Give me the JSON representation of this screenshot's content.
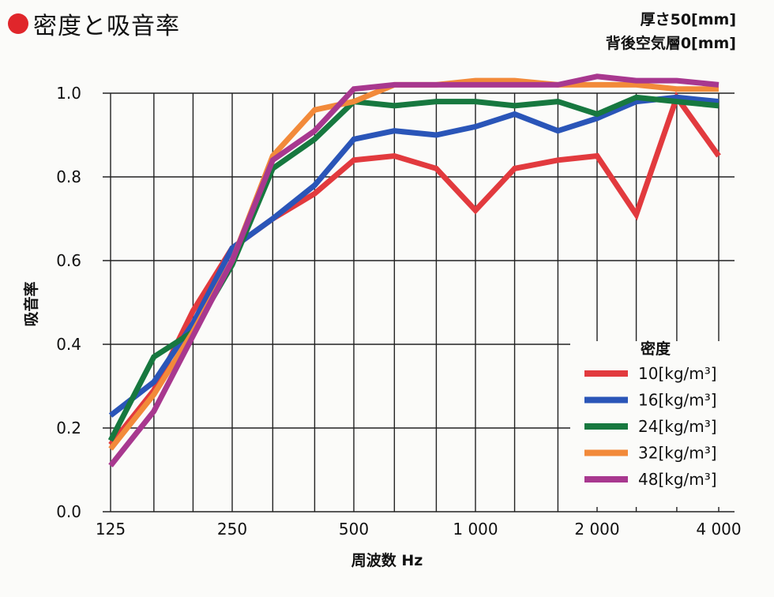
{
  "header": {
    "title": "密度と吸音率",
    "spec_thickness": "厚さ50[mm]",
    "spec_air_layer": "背後空気層0[mm]"
  },
  "chart_data": {
    "type": "line",
    "title": "密度と吸音率",
    "xlabel": "周波数 Hz",
    "ylabel": "吸音率",
    "x_scale": "log",
    "x": [
      125,
      160,
      200,
      250,
      315,
      400,
      500,
      630,
      800,
      1000,
      1250,
      1600,
      2000,
      2500,
      3150,
      4000
    ],
    "x_ticks": [
      {
        "value": 125,
        "label": "125"
      },
      {
        "value": 250,
        "label": "250"
      },
      {
        "value": 500,
        "label": "500"
      },
      {
        "value": 1000,
        "label": "1 000"
      },
      {
        "value": 2000,
        "label": "2 000"
      },
      {
        "value": 4000,
        "label": "4 000"
      }
    ],
    "y_ticks": [
      "0.0",
      "0.2",
      "0.4",
      "0.6",
      "0.8",
      "1.0"
    ],
    "ylim": [
      0,
      1.0
    ],
    "grid": true,
    "legend_title": "密度",
    "legend_position": "bottom-right",
    "series": [
      {
        "name": "10[kg/m³]",
        "color": "#e23a3e",
        "values": [
          0.16,
          0.29,
          0.48,
          0.63,
          0.7,
          0.76,
          0.84,
          0.85,
          0.82,
          0.72,
          0.82,
          0.84,
          0.85,
          0.71,
          0.99,
          0.85
        ]
      },
      {
        "name": "16[kg/m³]",
        "color": "#2a55b8",
        "values": [
          0.23,
          0.31,
          0.45,
          0.63,
          0.7,
          0.78,
          0.89,
          0.91,
          0.9,
          0.92,
          0.95,
          0.91,
          0.94,
          0.98,
          0.99,
          0.98
        ]
      },
      {
        "name": "24[kg/m³]",
        "color": "#17783f",
        "values": [
          0.17,
          0.37,
          0.43,
          0.59,
          0.82,
          0.89,
          0.98,
          0.97,
          0.98,
          0.98,
          0.97,
          0.98,
          0.95,
          0.99,
          0.98,
          0.97
        ]
      },
      {
        "name": "32[kg/m³]",
        "color": "#f28a3a",
        "values": [
          0.15,
          0.28,
          0.43,
          0.6,
          0.85,
          0.96,
          0.98,
          1.02,
          1.02,
          1.03,
          1.03,
          1.02,
          1.02,
          1.02,
          1.01,
          1.01
        ]
      },
      {
        "name": "48[kg/m³]",
        "color": "#a8388f",
        "values": [
          0.11,
          0.24,
          0.42,
          0.6,
          0.84,
          0.91,
          1.01,
          1.02,
          1.02,
          1.02,
          1.02,
          1.02,
          1.04,
          1.03,
          1.03,
          1.02
        ]
      }
    ]
  }
}
